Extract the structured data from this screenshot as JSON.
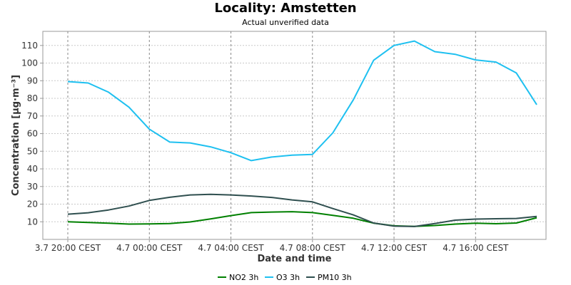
{
  "chart_data": {
    "type": "line",
    "title": "Locality: Amstetten",
    "subtitle": "Actual unverified data",
    "xlabel": "Date and time",
    "ylabel": "Concentration [µg·m⁻³]",
    "ylim": [
      0,
      118
    ],
    "yticks": [
      10,
      20,
      30,
      40,
      50,
      60,
      70,
      80,
      90,
      100,
      110
    ],
    "x_tick_labels": [
      "3.7 20:00 CEST",
      "4.7 00:00 CEST",
      "4.7 04:00 CEST",
      "4.7 08:00 CEST",
      "4.7 12:00 CEST",
      "4.7 16:00 CEST"
    ],
    "x_tick_hours": [
      0,
      4,
      8,
      12,
      16,
      20
    ],
    "x_hours": [
      0,
      1,
      2,
      3,
      4,
      5,
      6,
      7,
      8,
      9,
      10,
      11,
      12,
      13,
      14,
      15,
      16,
      17,
      18,
      19,
      20,
      21,
      22,
      23
    ],
    "grid": true,
    "legend_position": "bottom",
    "series": [
      {
        "name": "NO2 3h",
        "color": "#008000",
        "values": [
          10,
          9.6,
          9.2,
          8.7,
          8.8,
          9,
          9.9,
          11.6,
          13.5,
          15.2,
          15.5,
          15.7,
          15.2,
          13.6,
          12,
          9.2,
          7.7,
          7.4,
          7.9,
          8.7,
          9.2,
          8.9,
          9.3,
          12.3
        ]
      },
      {
        "name": "O3 3h",
        "color": "#1ec0f0",
        "values": [
          89.5,
          88.7,
          83.5,
          75,
          62.5,
          55.2,
          54.7,
          52.5,
          49.2,
          44.7,
          46.7,
          47.8,
          48.2,
          60.4,
          79.1,
          101.6,
          110,
          112.5,
          106.5,
          105,
          101.8,
          100.6,
          94.4,
          76.4
        ]
      },
      {
        "name": "PM10 3h",
        "color": "#2f4f4f",
        "values": [
          14.3,
          15.1,
          16.7,
          18.9,
          22.1,
          23.9,
          25.2,
          25.6,
          25.2,
          24.6,
          23.8,
          22.4,
          21.3,
          17.5,
          13.9,
          9.3,
          7.5,
          7.3,
          9,
          10.9,
          11.5,
          11.7,
          11.9,
          13
        ]
      }
    ]
  }
}
